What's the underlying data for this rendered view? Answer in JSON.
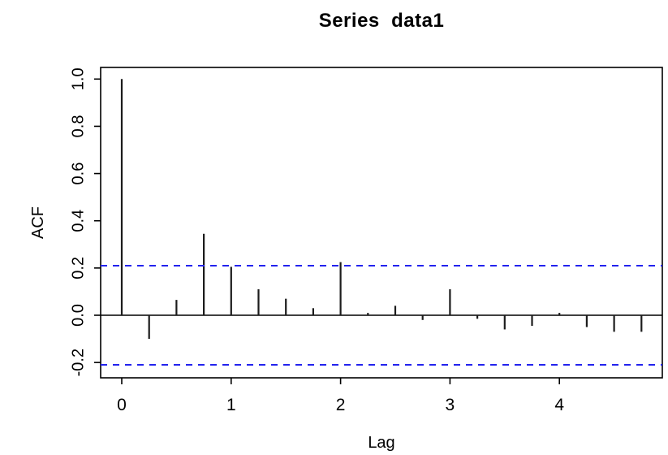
{
  "title": "Series  data1",
  "chart_data": {
    "type": "bar",
    "subtype": "acf-stem-plot",
    "title": "Series  data1",
    "xlabel": "Lag",
    "ylabel": "ACF",
    "x": [
      0,
      0.25,
      0.5,
      0.75,
      1.0,
      1.25,
      1.5,
      1.75,
      2.0,
      2.25,
      2.5,
      2.75,
      3.0,
      3.25,
      3.5,
      3.75,
      4.0,
      4.25,
      4.5,
      4.75
    ],
    "values": [
      1.0,
      -0.1,
      0.065,
      0.345,
      0.205,
      0.11,
      0.07,
      0.03,
      0.225,
      0.01,
      0.04,
      -0.02,
      0.11,
      -0.015,
      -0.06,
      -0.045,
      0.01,
      -0.05,
      -0.07,
      -0.07
    ],
    "confidence_interval": 0.21,
    "ci_line_style": "dashed",
    "x_ticks": [
      0,
      1,
      2,
      3,
      4
    ],
    "y_ticks": [
      -0.2,
      0.0,
      0.2,
      0.4,
      0.6,
      0.8,
      1.0
    ],
    "xlim": [
      -0.19,
      4.94
    ],
    "ylim": [
      -0.26,
      1.05
    ],
    "grid": false,
    "legend": "none",
    "colors": {
      "spike": "#1c1c1c",
      "axis": "#000000",
      "ci_line": "#2323ee",
      "background": "#ffffff",
      "text": "#000000"
    }
  }
}
